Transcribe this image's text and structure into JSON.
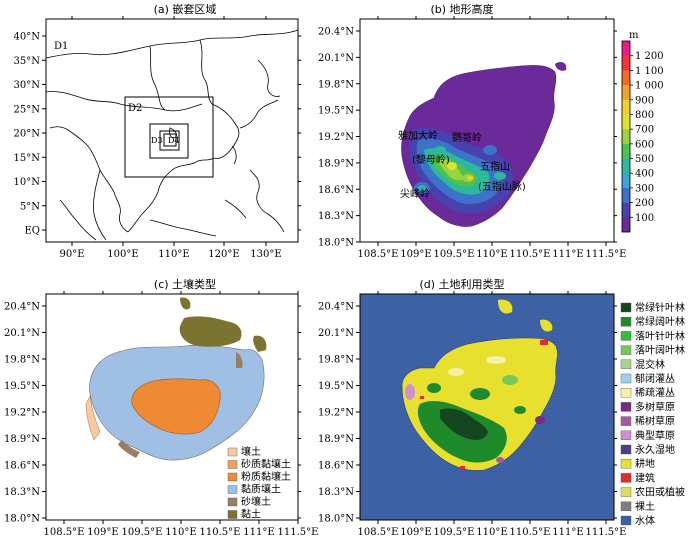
{
  "panels": {
    "a": {
      "title": "(a) 嵌套区域",
      "x_ticks": [
        "90°E",
        "100°E",
        "110°E",
        "120°E",
        "130°E"
      ],
      "y_ticks": [
        "40°N",
        "35°N",
        "30°N",
        "25°N",
        "20°N",
        "15°N",
        "10°N",
        "5°N",
        "EQ"
      ],
      "domains": [
        "D1",
        "D2",
        "D3",
        "D4"
      ]
    },
    "b": {
      "title": "(b) 地形高度",
      "x_ticks": [
        "108.5°E",
        "109°E",
        "109.5°E",
        "110°E",
        "110.5°E",
        "111°E",
        "111.5°E"
      ],
      "y_ticks": [
        "20.4°N",
        "20.1°N",
        "19.8°N",
        "19.5°N",
        "19.2°N",
        "18.9°N",
        "18.6°N",
        "18.3°N",
        "18.0°N"
      ],
      "colorbar_unit": "m",
      "colorbar_ticks": [
        "1 200",
        "1 100",
        "1 000",
        "900",
        "800",
        "700",
        "600",
        "500",
        "400",
        "300",
        "200",
        "100"
      ],
      "colorbar_colors": [
        "#f0198c",
        "#f4343c",
        "#f26a28",
        "#f4a22a",
        "#f4cf2a",
        "#dbe32a",
        "#9ad33a",
        "#4fc14c",
        "#2cb89b",
        "#3aa6d6",
        "#3b73c9",
        "#4742ad",
        "#6a2a9a"
      ],
      "place_names": [
        "雅加大岭",
        "鹦哥岭",
        "(黎母岭)",
        "五指山",
        "(五指山脉)",
        "尖峰岭"
      ]
    },
    "c": {
      "title": "(c) 土壤类型",
      "x_ticks": [
        "108.5°E",
        "109°E",
        "109.5°E",
        "110°E",
        "110.5°E",
        "111°E",
        "111.5°E"
      ],
      "y_ticks": [
        "20.4°N",
        "20.1°N",
        "19.8°N",
        "19.5°N",
        "19.2°N",
        "18.9°N",
        "18.6°N",
        "18.3°N",
        "18.0°N"
      ],
      "legend": [
        {
          "label": "壤土",
          "color": "#f6c9a3"
        },
        {
          "label": "砂质黏壤土",
          "color": "#f2a15a"
        },
        {
          "label": "粉质黏壤土",
          "color": "#ee8a34"
        },
        {
          "label": "黏质壤土",
          "color": "#9fc0e4"
        },
        {
          "label": "砂壤土",
          "color": "#9b7e62"
        },
        {
          "label": "黏土",
          "color": "#7a7430"
        }
      ]
    },
    "d": {
      "title": "(d) 土地利用类型",
      "x_ticks": [
        "108.5°E",
        "109°E",
        "109.5°E",
        "110°E",
        "110.5°E",
        "111°E",
        "111.5°E"
      ],
      "y_ticks": [
        "20.4°N",
        "20.1°N",
        "19.8°N",
        "19.5°N",
        "19.2°N",
        "18.9°N",
        "18.6°N",
        "18.3°N",
        "18.0°N"
      ],
      "legend": [
        {
          "label": "常绿针叶林",
          "color": "#14461f"
        },
        {
          "label": "常绿阔叶林",
          "color": "#1f8a2c"
        },
        {
          "label": "落叶针叶林",
          "color": "#2fbf3b"
        },
        {
          "label": "落叶阔叶林",
          "color": "#73c95a"
        },
        {
          "label": "混交林",
          "color": "#a7d58f"
        },
        {
          "label": "郁闭灌丛",
          "color": "#9ed3e6"
        },
        {
          "label": "稀疏灌丛",
          "color": "#f7f1a6"
        },
        {
          "label": "多树草原",
          "color": "#7a2a82"
        },
        {
          "label": "稀树草原",
          "color": "#a65aa6"
        },
        {
          "label": "典型草原",
          "color": "#cf8fd0"
        },
        {
          "label": "永久湿地",
          "color": "#4a3f8c"
        },
        {
          "label": "耕地",
          "color": "#e8e02e"
        },
        {
          "label": "建筑",
          "color": "#e42a2a"
        },
        {
          "label": "农田或植被",
          "color": "#d8e05a"
        },
        {
          "label": "裸土",
          "color": "#7f7f7f"
        },
        {
          "label": "水体",
          "color": "#3b5fa3"
        }
      ]
    }
  }
}
